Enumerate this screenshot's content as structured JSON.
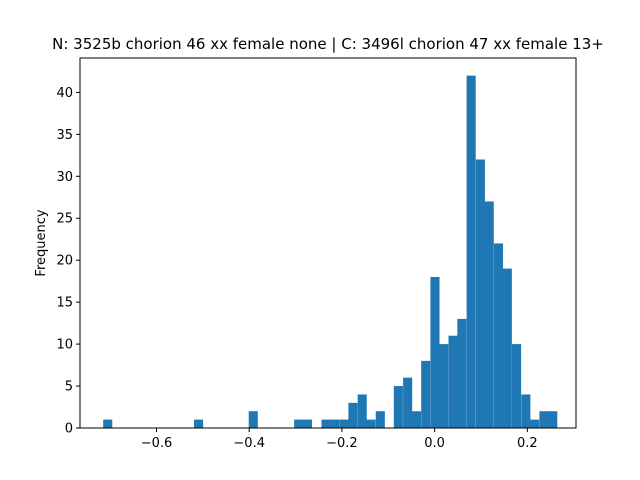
{
  "chart_data": {
    "type": "bar",
    "subtype": "histogram",
    "title": "N: 3525b chorion 46 xx female none | C: 3496l chorion 47 xx female 13+",
    "xlabel": "",
    "ylabel": "Frequency",
    "bar_color": "#1f77b4",
    "bin_width": 0.0196,
    "x": [
      -0.715,
      -0.695,
      -0.675,
      -0.656,
      -0.636,
      -0.617,
      -0.597,
      -0.578,
      -0.558,
      -0.538,
      -0.519,
      -0.499,
      -0.48,
      -0.46,
      -0.44,
      -0.421,
      -0.401,
      -0.382,
      -0.362,
      -0.342,
      -0.323,
      -0.303,
      -0.284,
      -0.264,
      -0.244,
      -0.225,
      -0.205,
      -0.186,
      -0.166,
      -0.147,
      -0.127,
      -0.107,
      -0.088,
      -0.068,
      -0.049,
      -0.029,
      -0.009,
      0.01,
      0.03,
      0.049,
      0.069,
      0.089,
      0.108,
      0.128,
      0.147,
      0.167,
      0.187,
      0.206,
      0.226,
      0.245
    ],
    "values": [
      1,
      0,
      0,
      0,
      0,
      0,
      0,
      0,
      0,
      0,
      1,
      0,
      0,
      0,
      0,
      0,
      2,
      0,
      0,
      0,
      0,
      1,
      1,
      0,
      1,
      1,
      1,
      3,
      4,
      1,
      2,
      0,
      5,
      6,
      2,
      8,
      18,
      10,
      11,
      13,
      42,
      32,
      27,
      22,
      19,
      10,
      4,
      1,
      2,
      2
    ],
    "xlim": [
      -0.765,
      0.305
    ],
    "ylim": [
      0,
      44.1
    ],
    "xticks": [
      -0.6,
      -0.4,
      -0.2,
      0.0,
      0.2
    ],
    "xtick_labels": [
      "−0.6",
      "−0.4",
      "−0.2",
      "0.0",
      "0.2"
    ],
    "yticks": [
      0,
      5,
      10,
      15,
      20,
      25,
      30,
      35,
      40
    ],
    "ytick_labels": [
      "0",
      "5",
      "10",
      "15",
      "20",
      "25",
      "30",
      "35",
      "40"
    ],
    "grid": false,
    "legend": false
  }
}
